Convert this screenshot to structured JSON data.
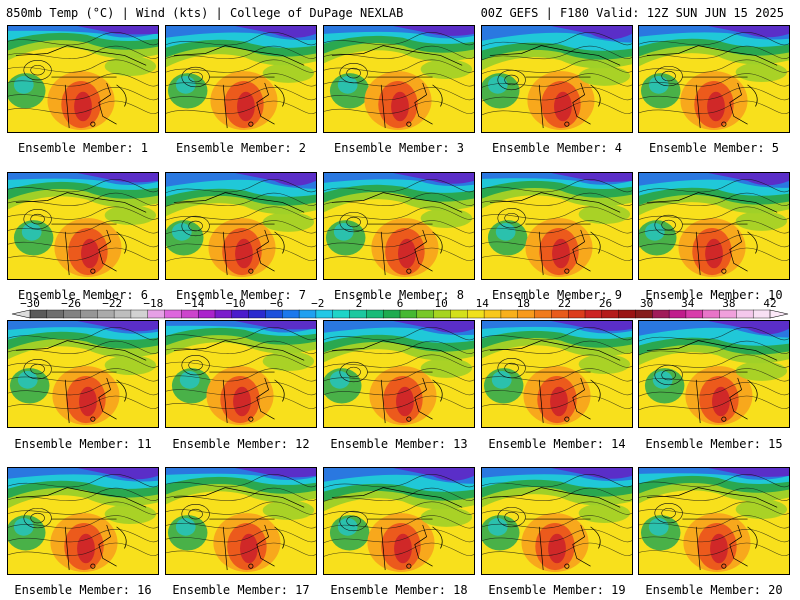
{
  "header": {
    "left_title": "850mb Temp (°C) | Wind (kts) | College of DuPage NEXLAB",
    "right_title": "00Z GEFS | F180 Valid: 12Z SUN JUN 15 2025"
  },
  "panels": [
    {
      "caption": "Ensemble Member: 1"
    },
    {
      "caption": "Ensemble Member: 2"
    },
    {
      "caption": "Ensemble Member: 3"
    },
    {
      "caption": "Ensemble Member: 4"
    },
    {
      "caption": "Ensemble Member: 5"
    },
    {
      "caption": "Ensemble Member: 6"
    },
    {
      "caption": "Ensemble Member: 7"
    },
    {
      "caption": "Ensemble Member: 8"
    },
    {
      "caption": "Ensemble Member: 9"
    },
    {
      "caption": "Ensemble Member: 10"
    },
    {
      "caption": "Ensemble Member: 11"
    },
    {
      "caption": "Ensemble Member: 12"
    },
    {
      "caption": "Ensemble Member: 13"
    },
    {
      "caption": "Ensemble Member: 14"
    },
    {
      "caption": "Ensemble Member: 15"
    },
    {
      "caption": "Ensemble Member: 16"
    },
    {
      "caption": "Ensemble Member: 17"
    },
    {
      "caption": "Ensemble Member: 18"
    },
    {
      "caption": "Ensemble Member: 19"
    },
    {
      "caption": "Ensemble Member: 20"
    }
  ],
  "colorbar": {
    "labels": [
      "−30",
      "−26",
      "−22",
      "−18",
      "−14",
      "−10",
      "−6",
      "−2",
      "2",
      "6",
      "10",
      "14",
      "18",
      "22",
      "26",
      "30",
      "34",
      "38",
      "42"
    ],
    "colors": [
      "#5a5a5a",
      "#6e6e6e",
      "#828282",
      "#969696",
      "#aaaaaa",
      "#bebebe",
      "#d2d2d2",
      "#e6a0e6",
      "#dd66dd",
      "#cc44cc",
      "#aa22cc",
      "#7a1ccc",
      "#4b1ccc",
      "#2a2acf",
      "#1c50dc",
      "#1c78ec",
      "#20a0f0",
      "#22c8e6",
      "#1fd4c8",
      "#1cc8a0",
      "#18bb78",
      "#1eab50",
      "#46b832",
      "#78c828",
      "#a6d420",
      "#d4e01c",
      "#f0e01c",
      "#f8c81c",
      "#f8b01c",
      "#f89a1c",
      "#f07a1c",
      "#e85a1c",
      "#dc3c1c",
      "#cc2424",
      "#b41c1c",
      "#9a1414",
      "#861c1c",
      "#a01c5a",
      "#c01c8c",
      "#d83caa",
      "#e874c8",
      "#f0a0dc",
      "#f4c8ec",
      "#f8e0f4"
    ]
  },
  "map_colors": {
    "cold_purple": "#5a2ec8",
    "blue": "#2a78e0",
    "cyan": "#20c8d8",
    "green": "#2aa850",
    "lime": "#a0d028",
    "yellow": "#f8e01c",
    "orange": "#f8a81c",
    "red_orange": "#ec5a1c",
    "red": "#d02828"
  }
}
